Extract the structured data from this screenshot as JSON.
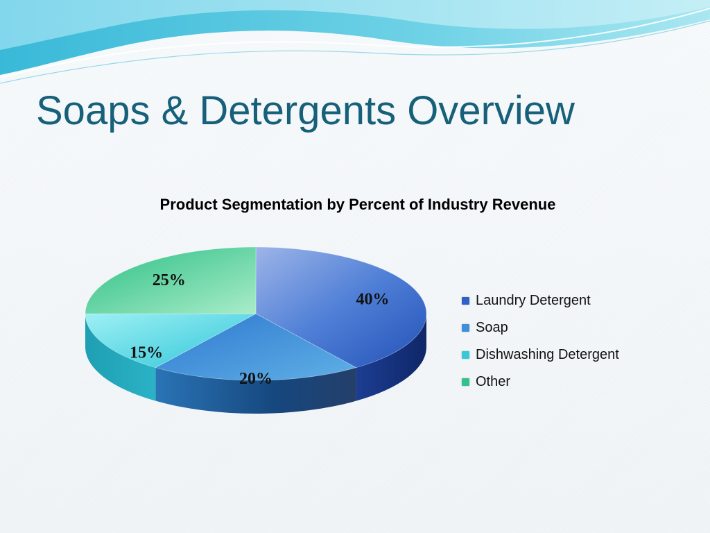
{
  "slide": {
    "title": "Soaps & Detergents Overview"
  },
  "chart_data": {
    "type": "pie",
    "title": "Product Segmentation by Percent of Industry Revenue",
    "categories": [
      "Laundry Detergent",
      "Soap",
      "Dishwashing Detergent",
      "Other"
    ],
    "values": [
      40,
      20,
      15,
      25
    ],
    "labels": [
      "40%",
      "20%",
      "15%",
      "25%"
    ],
    "colors": [
      "#2f5fc8",
      "#3d8fd9",
      "#38c8d6",
      "#33c28c"
    ],
    "legend_position": "right"
  }
}
